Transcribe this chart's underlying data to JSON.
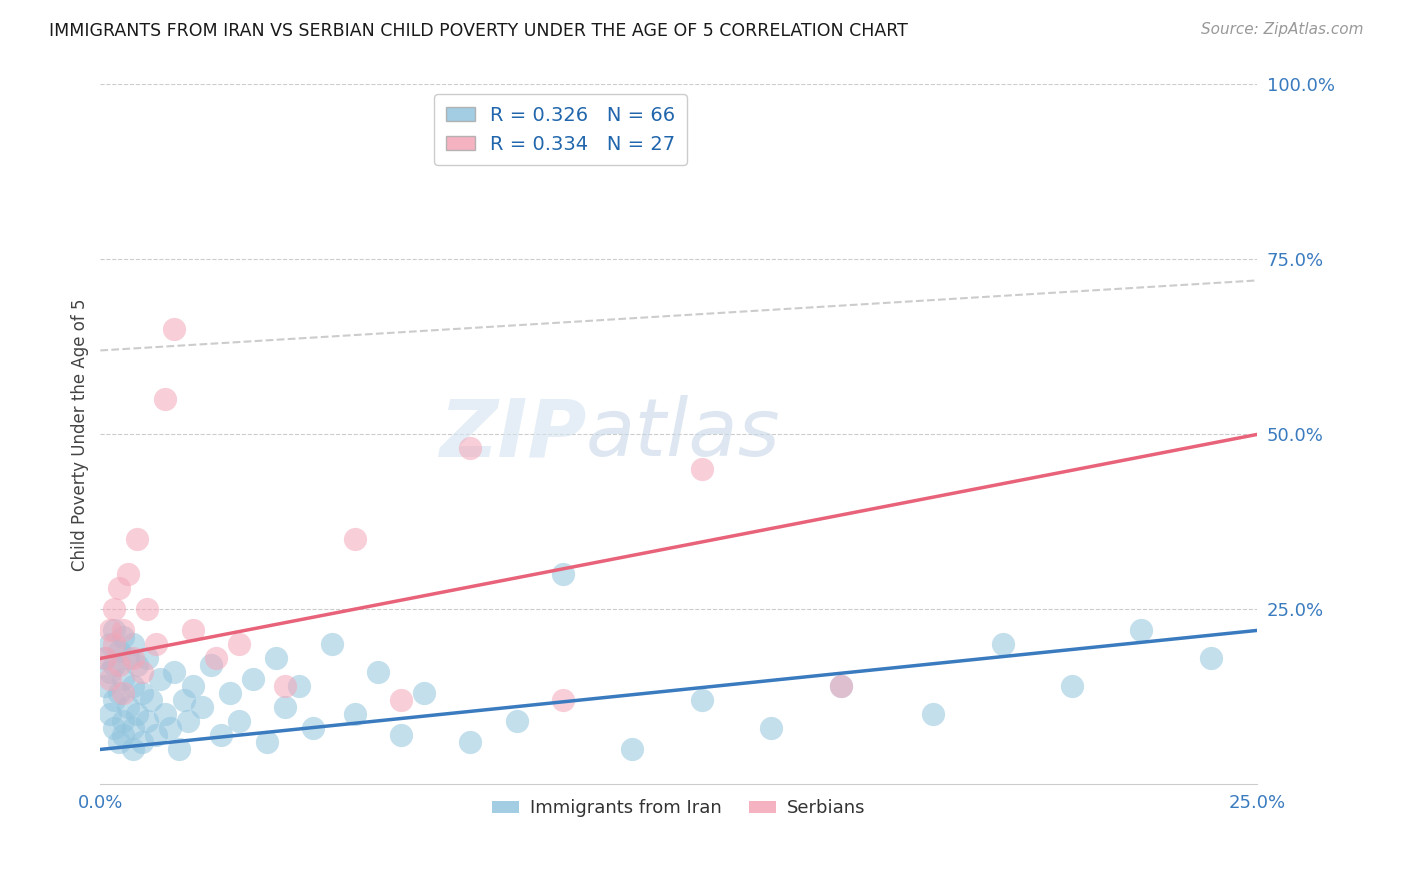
{
  "title": "IMMIGRANTS FROM IRAN VS SERBIAN CHILD POVERTY UNDER THE AGE OF 5 CORRELATION CHART",
  "source": "Source: ZipAtlas.com",
  "ylabel": "Child Poverty Under the Age of 5",
  "legend_label1": "Immigrants from Iran",
  "legend_label2": "Serbians",
  "R1": "0.326",
  "N1": "66",
  "R2": "0.334",
  "N2": "27",
  "color_blue": "#92c5de",
  "color_pink": "#f4a6b8",
  "color_blue_line": "#3a7bbf",
  "color_pink_line": "#e8637a",
  "xlim": [
    0.0,
    0.25
  ],
  "ylim": [
    0.0,
    1.0
  ],
  "iran_x": [
    0.001,
    0.001,
    0.002,
    0.002,
    0.002,
    0.003,
    0.003,
    0.003,
    0.003,
    0.004,
    0.004,
    0.004,
    0.005,
    0.005,
    0.005,
    0.005,
    0.006,
    0.006,
    0.007,
    0.007,
    0.007,
    0.007,
    0.008,
    0.008,
    0.009,
    0.009,
    0.01,
    0.01,
    0.011,
    0.012,
    0.013,
    0.014,
    0.015,
    0.016,
    0.017,
    0.018,
    0.019,
    0.02,
    0.022,
    0.024,
    0.026,
    0.028,
    0.03,
    0.033,
    0.036,
    0.038,
    0.04,
    0.043,
    0.046,
    0.05,
    0.055,
    0.06,
    0.065,
    0.07,
    0.08,
    0.09,
    0.1,
    0.115,
    0.13,
    0.145,
    0.16,
    0.18,
    0.195,
    0.21,
    0.225,
    0.24
  ],
  "iran_y": [
    0.18,
    0.14,
    0.2,
    0.1,
    0.16,
    0.08,
    0.22,
    0.12,
    0.17,
    0.06,
    0.19,
    0.13,
    0.07,
    0.21,
    0.09,
    0.15,
    0.11,
    0.18,
    0.05,
    0.14,
    0.08,
    0.2,
    0.1,
    0.17,
    0.06,
    0.13,
    0.09,
    0.18,
    0.12,
    0.07,
    0.15,
    0.1,
    0.08,
    0.16,
    0.05,
    0.12,
    0.09,
    0.14,
    0.11,
    0.17,
    0.07,
    0.13,
    0.09,
    0.15,
    0.06,
    0.18,
    0.11,
    0.14,
    0.08,
    0.2,
    0.1,
    0.16,
    0.07,
    0.13,
    0.06,
    0.09,
    0.3,
    0.05,
    0.12,
    0.08,
    0.14,
    0.1,
    0.2,
    0.14,
    0.22,
    0.18
  ],
  "serbian_x": [
    0.001,
    0.002,
    0.002,
    0.003,
    0.003,
    0.004,
    0.004,
    0.005,
    0.005,
    0.006,
    0.007,
    0.008,
    0.009,
    0.01,
    0.012,
    0.014,
    0.016,
    0.02,
    0.025,
    0.03,
    0.04,
    0.055,
    0.065,
    0.08,
    0.1,
    0.13,
    0.16
  ],
  "serbian_y": [
    0.18,
    0.22,
    0.15,
    0.2,
    0.25,
    0.17,
    0.28,
    0.13,
    0.22,
    0.3,
    0.18,
    0.35,
    0.16,
    0.25,
    0.2,
    0.55,
    0.65,
    0.22,
    0.18,
    0.2,
    0.14,
    0.35,
    0.12,
    0.48,
    0.12,
    0.45,
    0.14
  ],
  "iran_line_x0": 0.0,
  "iran_line_y0": 0.05,
  "iran_line_x1": 0.25,
  "iran_line_y1": 0.22,
  "serb_line_x0": 0.0,
  "serb_line_y0": 0.18,
  "serb_line_x1": 0.25,
  "serb_line_y1": 0.5,
  "dash_line_x0": 0.0,
  "dash_line_y0": 0.62,
  "dash_line_x1": 0.25,
  "dash_line_y1": 0.72,
  "background_color": "#ffffff",
  "grid_color": "#cccccc"
}
